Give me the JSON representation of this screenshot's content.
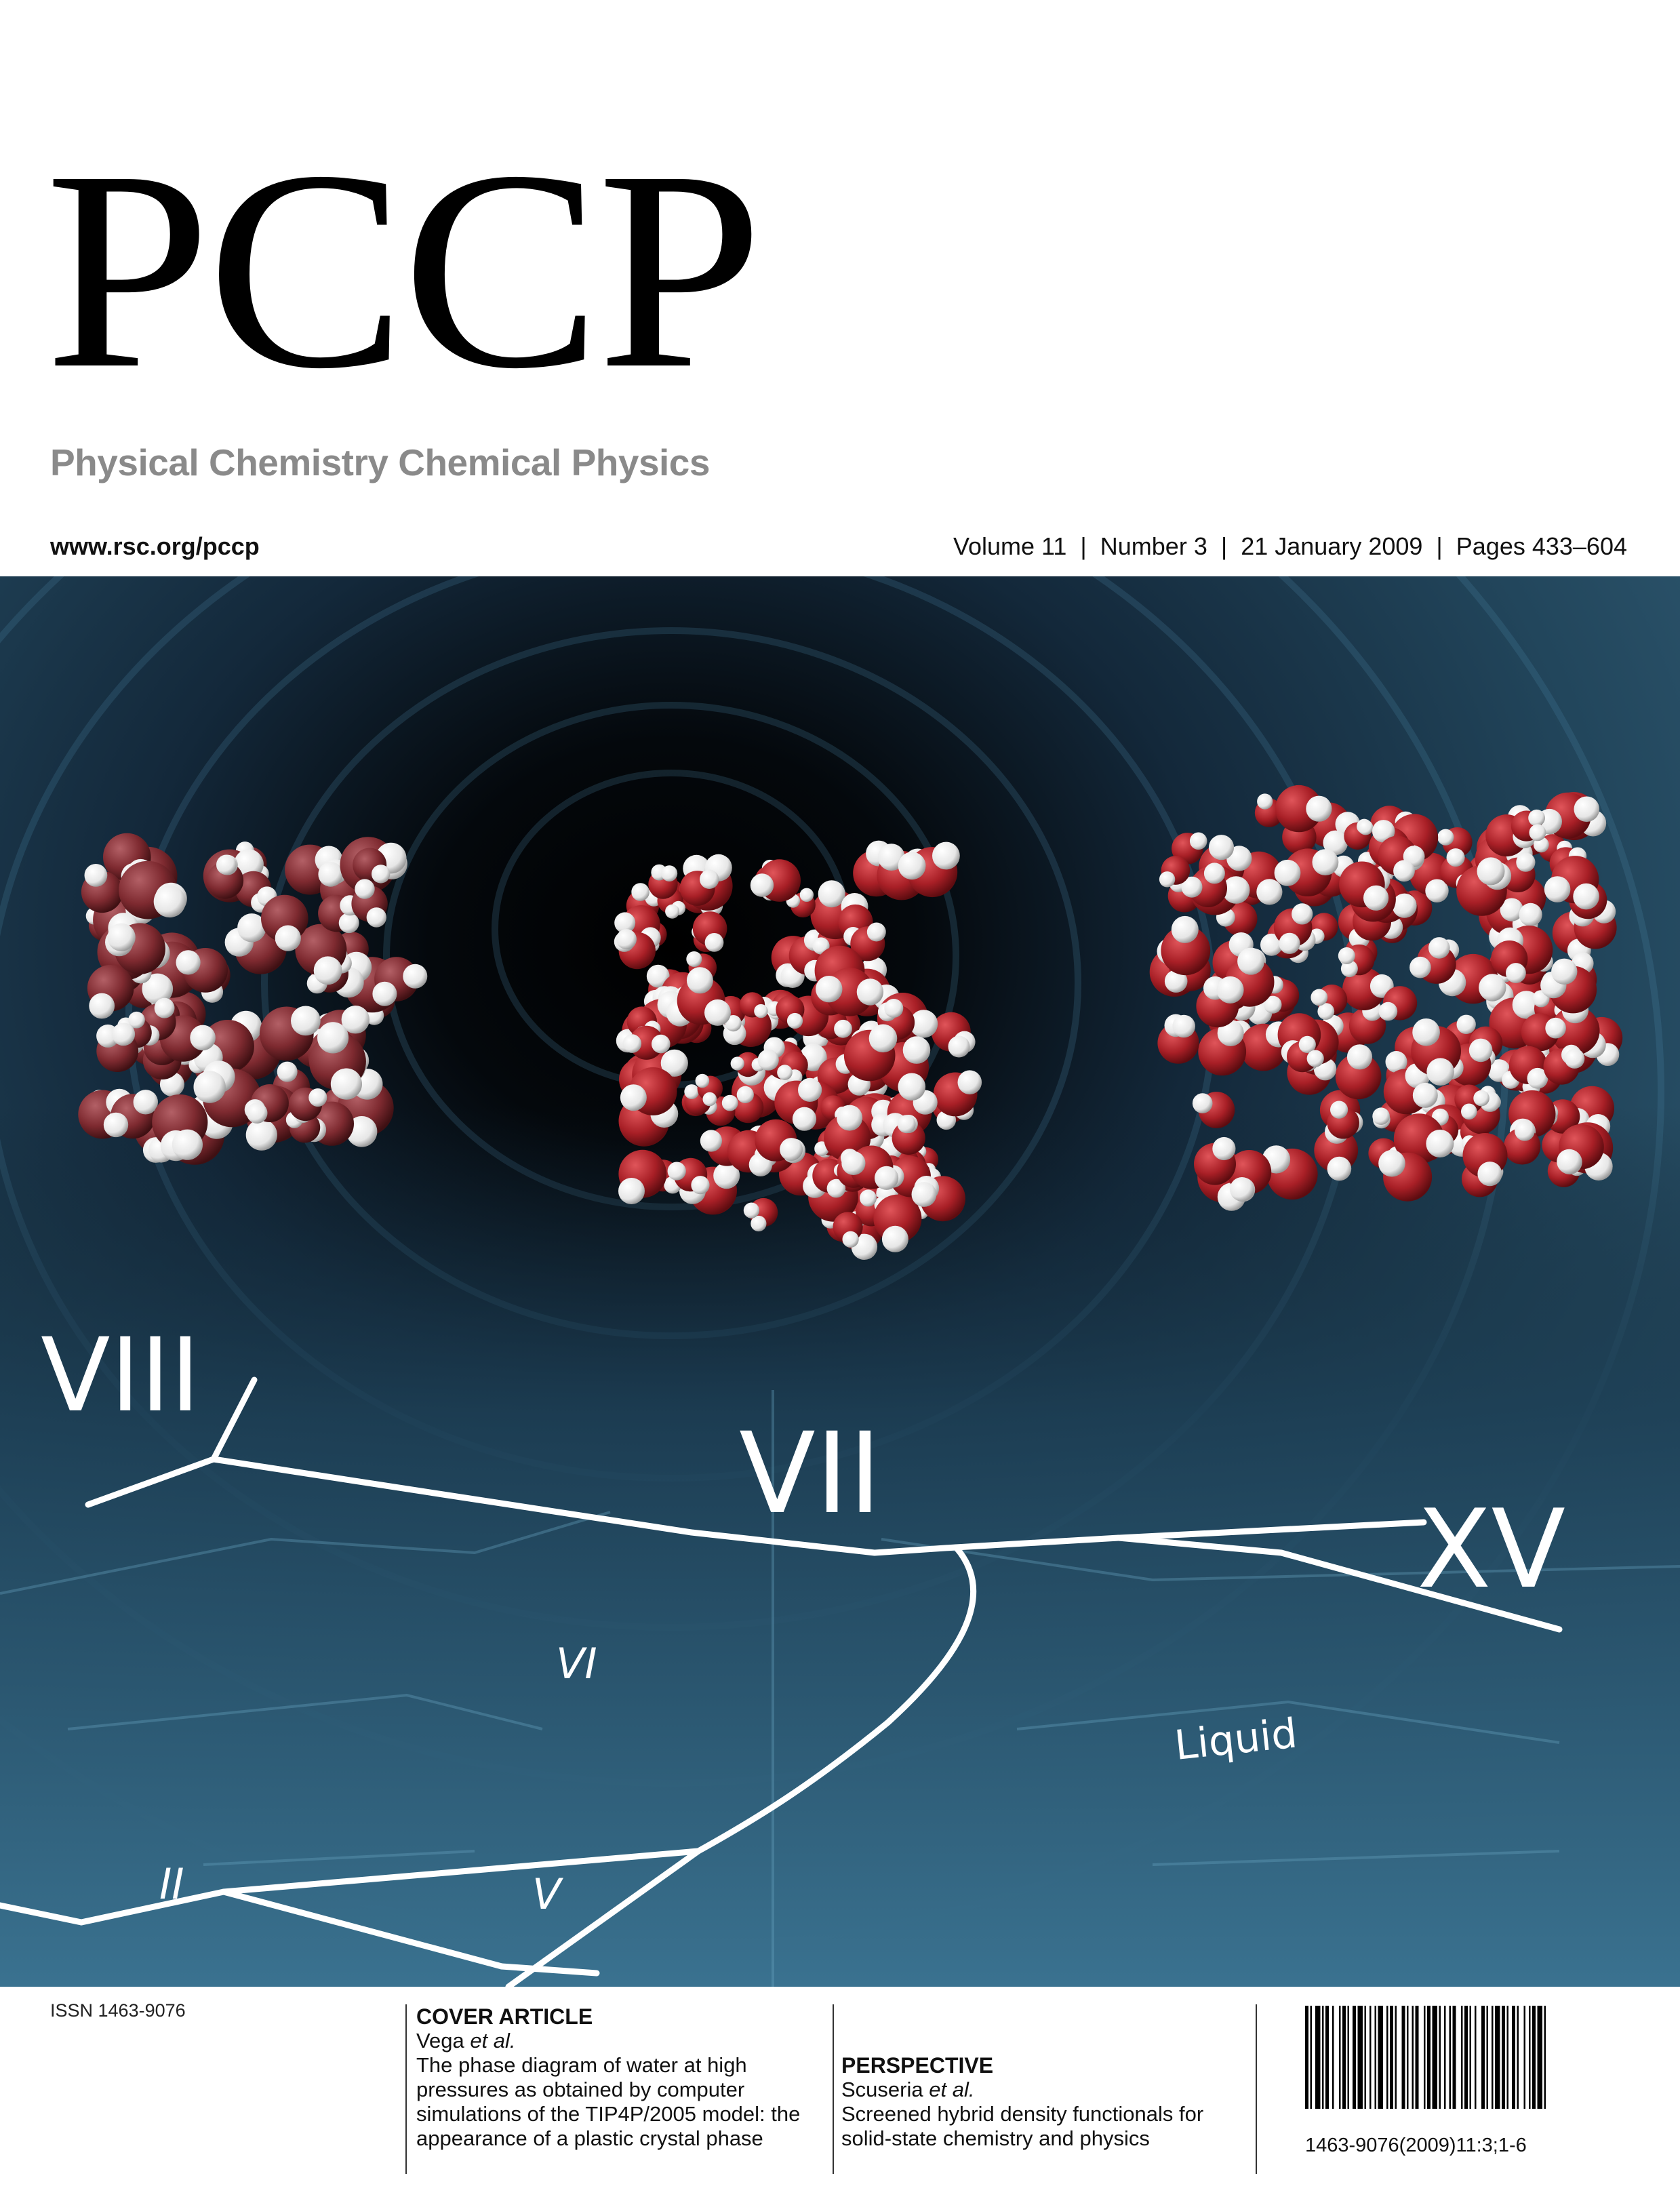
{
  "journal": {
    "masthead": "PCCP",
    "subtitle": "Physical Chemistry Chemical Physics",
    "url": "www.rsc.org/pccp",
    "issue_line": "Volume 11  |  Number 3  |  21 January 2009  |  Pages 433–604"
  },
  "cover_image": {
    "phase_labels": {
      "viii": "VIII",
      "vii": "VII",
      "xv": "XV",
      "vi": "VI",
      "liquid": "Liquid",
      "ii": "II",
      "v": "V"
    },
    "colors": {
      "background": "#0d1a24",
      "oxygen": "#b3262c",
      "hydrogen": "#ffffff",
      "lines": "#ffffff"
    }
  },
  "footer": {
    "issn": "ISSN 1463-9076",
    "cover_article": {
      "heading": "COVER ARTICLE",
      "authors_name": "Vega ",
      "authors_etal": "et al.",
      "title_lines": [
        "The phase diagram of water at high",
        "pressures as obtained by computer",
        "simulations of the TIP4P/2005 model: the",
        "appearance of a plastic crystal phase"
      ]
    },
    "perspective": {
      "heading": "PERSPECTIVE",
      "authors_name": "Scuseria ",
      "authors_etal": "et al.",
      "title_lines": [
        "Screened hybrid density functionals for",
        "solid-state chemistry and physics"
      ]
    },
    "barcode_number": "1463-9076(2009)11:3;1-6"
  }
}
